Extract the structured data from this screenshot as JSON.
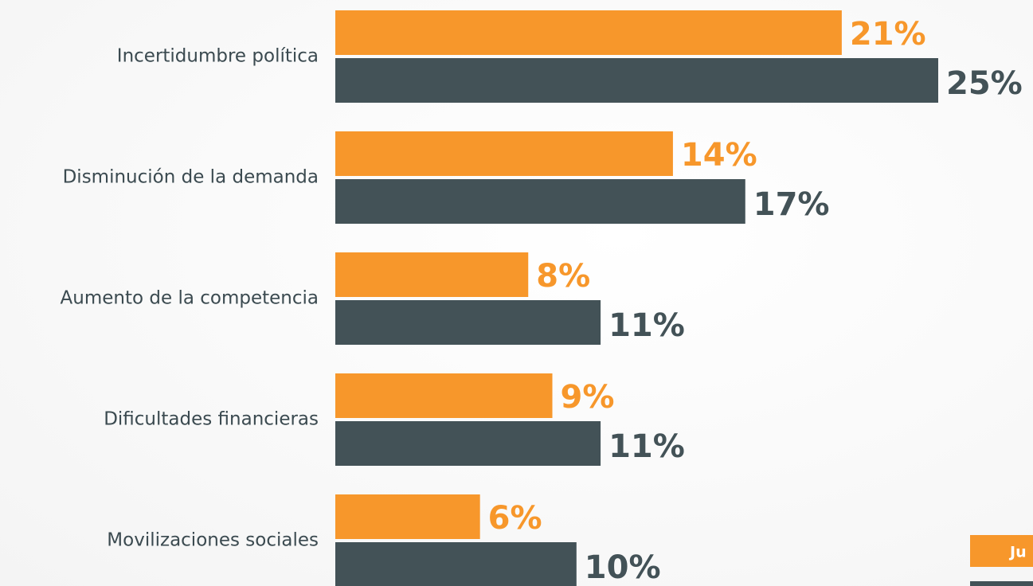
{
  "chart_data": {
    "type": "hbar",
    "categories": [
      "Incertidumbre política",
      "Disminución de la demanda",
      "Aumento de la competencia",
      "Dificultades financieras",
      "Movilizaciones sociales"
    ],
    "series": [
      {
        "name": "Ju",
        "color": "#f7972b",
        "values": [
          21,
          14,
          8,
          9,
          6
        ],
        "value_labels": [
          "21%",
          "14%",
          "8%",
          "9%",
          "6%"
        ]
      },
      {
        "color": "#435257",
        "values": [
          25,
          17,
          11,
          11,
          10
        ],
        "value_labels": [
          "25%",
          "17%",
          "11%",
          "11%",
          "10%"
        ]
      }
    ],
    "xlim": [
      0,
      25
    ]
  }
}
